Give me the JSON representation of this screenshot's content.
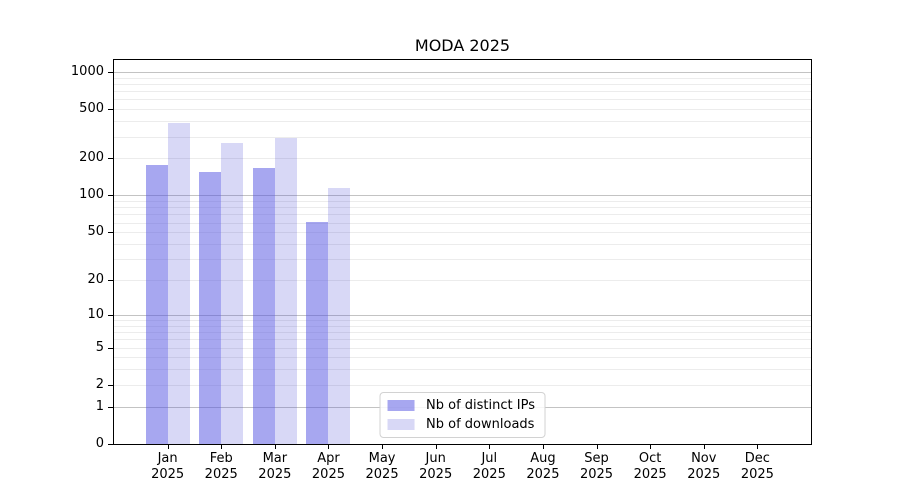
{
  "chart_data": {
    "type": "bar",
    "title": "MODA 2025",
    "months": [
      "Jan",
      "Feb",
      "Mar",
      "Apr",
      "May",
      "Jun",
      "Jul",
      "Aug",
      "Sep",
      "Oct",
      "Nov",
      "Dec"
    ],
    "year": "2025",
    "series": [
      {
        "name": "Nb of distinct IPs",
        "color": "rgba(79,79,225,0.5)",
        "values": [
          176,
          154,
          166,
          61,
          0,
          0,
          0,
          0,
          0,
          0,
          0,
          0
        ]
      },
      {
        "name": "Nb of downloads",
        "color": "rgba(60,60,210,0.2)",
        "values": [
          389,
          266,
          293,
          114,
          0,
          0,
          0,
          0,
          0,
          0,
          0,
          0
        ]
      }
    ],
    "y_ticks": [
      0,
      1,
      2,
      5,
      10,
      20,
      50,
      100,
      200,
      500,
      1000
    ],
    "y_scale": "log10(value+1)",
    "ylim": [
      0,
      1270
    ],
    "grid": {
      "major": [
        1,
        10,
        100,
        1000
      ],
      "minor": [
        2,
        3,
        4,
        5,
        6,
        7,
        8,
        9,
        20,
        30,
        40,
        50,
        60,
        70,
        80,
        90,
        200,
        300,
        400,
        500,
        600,
        700,
        800,
        900
      ]
    },
    "legend_position": "lower center",
    "colors": {
      "bar_distinct_ips": "rgba(79,79,225,0.5)",
      "bar_downloads": "rgba(60,60,210,0.2)",
      "major_grid": "#c3c3c3",
      "minor_grid": "#ececec",
      "axis": "#000000"
    }
  }
}
